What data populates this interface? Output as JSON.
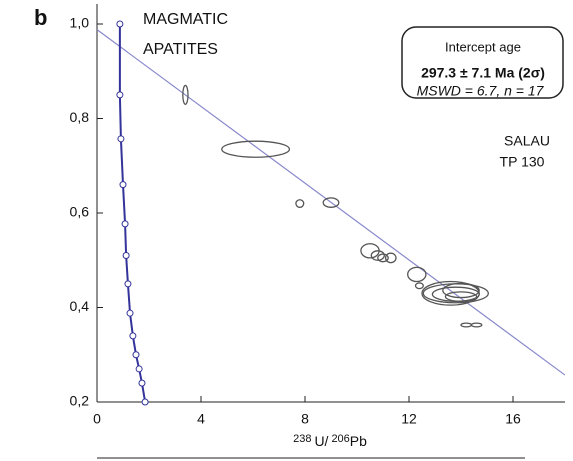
{
  "chart_data": {
    "type": "scatter",
    "panel_label": "b",
    "label_lines": [
      "MAGMATIC",
      "APATITES"
    ],
    "sample_lines": [
      "SALAU",
      "TP 130"
    ],
    "box": {
      "title": "Intercept age",
      "age": "297.3 ± 7.1 Ma (2σ)",
      "stats": "MSWD = 6.7, n = 17"
    },
    "xlabel": {
      "mass1": "238",
      "element1": "U/",
      "mass2": "206",
      "element2": "Pb"
    },
    "xlim": [
      0,
      18
    ],
    "ylim": [
      0.2,
      1.0
    ],
    "xticks": [
      0,
      4,
      8,
      12,
      16
    ],
    "yticks": [
      {
        "value": 0.2,
        "label": "0,2"
      },
      {
        "value": 0.4,
        "label": "0,4"
      },
      {
        "value": 0.6,
        "label": "0,6"
      },
      {
        "value": 0.8,
        "label": "0,8"
      },
      {
        "value": 1.0,
        "label": "1,0"
      }
    ],
    "ellipse_color": "#555555",
    "ellipses": {
      "x": [
        3.4,
        6.1,
        7.8,
        9.0,
        10.5,
        10.8,
        11.0,
        11.3,
        12.3,
        12.4,
        13.6,
        13.8,
        13.8,
        14.0,
        14.0,
        14.2,
        14.6
      ],
      "y": [
        0.85,
        0.735,
        0.62,
        0.622,
        0.52,
        0.51,
        0.505,
        0.505,
        0.47,
        0.446,
        0.43,
        0.43,
        0.428,
        0.423,
        0.436,
        0.363,
        0.363
      ],
      "rx": [
        0.1,
        1.3,
        0.15,
        0.3,
        0.35,
        0.25,
        0.2,
        0.2,
        0.35,
        0.15,
        1.1,
        1.25,
        0.9,
        0.6,
        0.7,
        0.2,
        0.2
      ],
      "ry": [
        0.02,
        0.017,
        0.008,
        0.01,
        0.015,
        0.01,
        0.008,
        0.01,
        0.015,
        0.006,
        0.025,
        0.02,
        0.015,
        0.01,
        0.015,
        0.004,
        0.004
      ]
    },
    "regression": {
      "color": "#8888cc",
      "x": [
        0,
        18
      ],
      "y": [
        0.988,
        0.257
      ]
    },
    "concordia": {
      "color": "#33339a",
      "x": [
        0.88,
        0.88,
        0.92,
        1.0,
        1.08,
        1.12,
        1.19,
        1.27,
        1.38,
        1.5,
        1.62,
        1.73,
        1.85
      ],
      "y": [
        1.0,
        0.85,
        0.757,
        0.66,
        0.577,
        0.51,
        0.45,
        0.388,
        0.34,
        0.3,
        0.27,
        0.24,
        0.2
      ]
    }
  }
}
